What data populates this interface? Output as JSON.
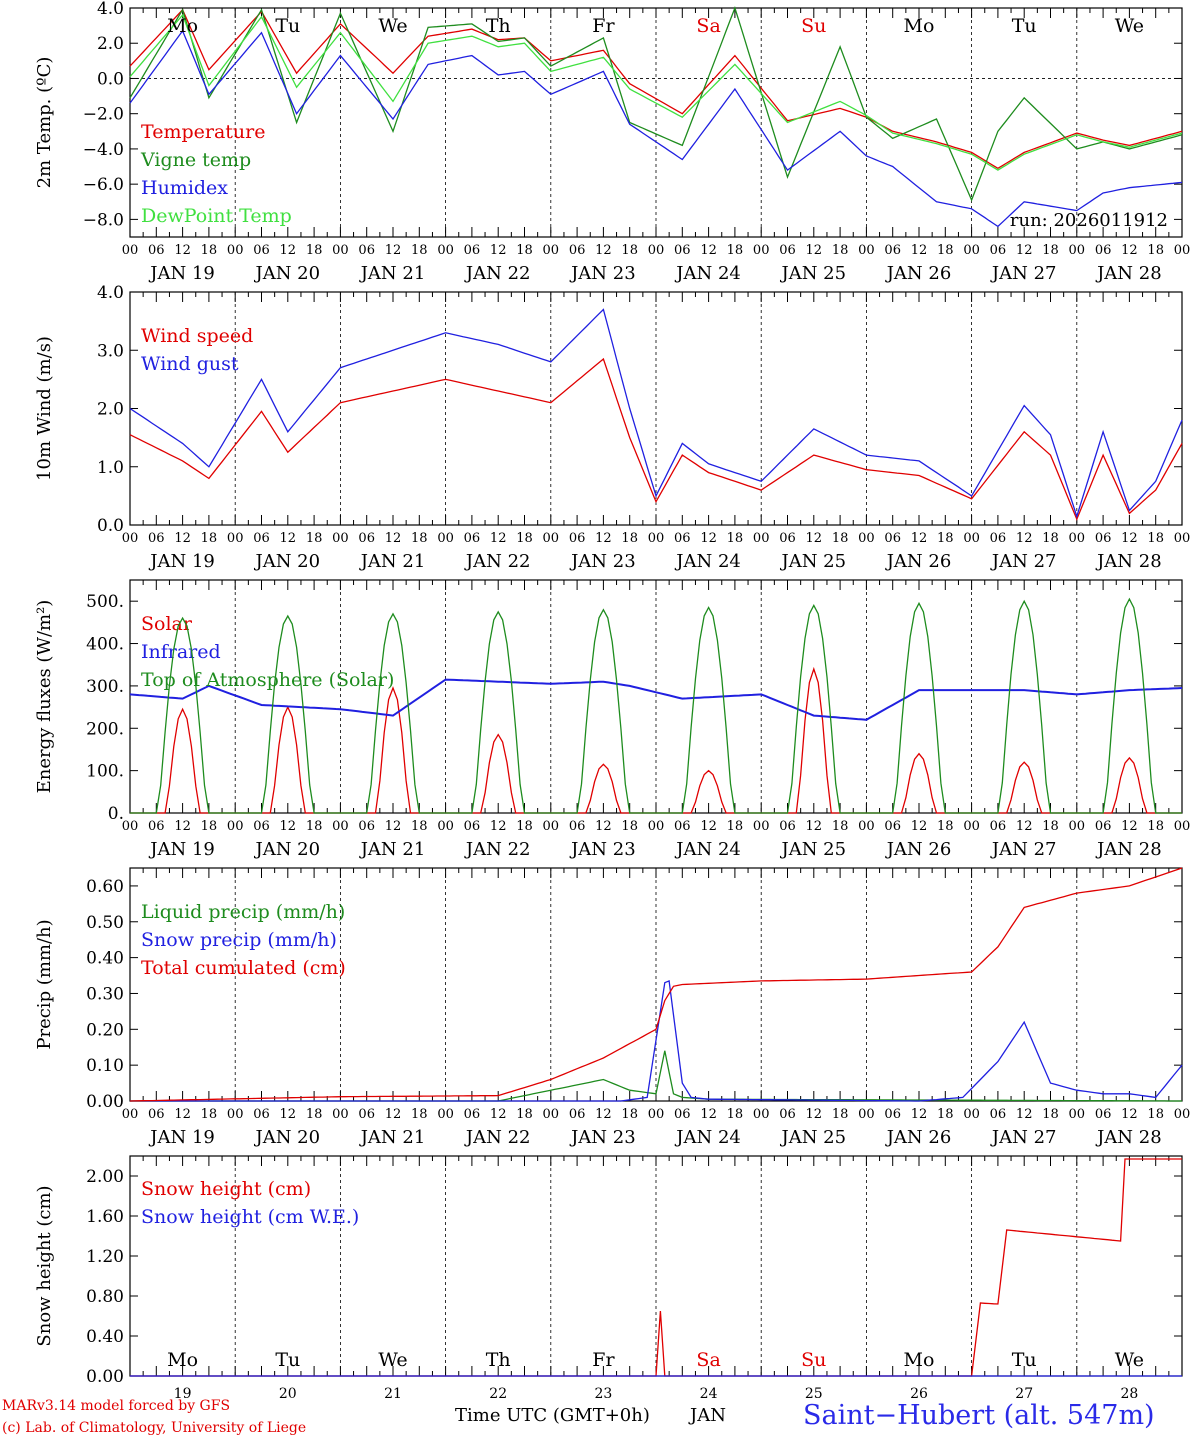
{
  "station": "Saint−Hubert (alt. 547m)",
  "model_credit": [
    "MARv3.14 model forced by GFS",
    "(c) Lab. of Climatology, University of Liege"
  ],
  "time_axis_label": "Time UTC (GMT+0h)",
  "month_label": "JAN",
  "run_label": "run: 2026011912",
  "day_numbers": [
    "19",
    "20",
    "21",
    "22",
    "23",
    "24",
    "25",
    "26",
    "27",
    "28"
  ],
  "day_names": [
    "Mo",
    "Tu",
    "We",
    "Th",
    "Fr",
    "Sa",
    "Su",
    "Mo",
    "Tu",
    "We"
  ],
  "day_name_colors": [
    "#000000",
    "#000000",
    "#000000",
    "#000000",
    "#000000",
    "#e00000",
    "#e00000",
    "#000000",
    "#000000",
    "#000000"
  ],
  "date_labels": [
    "JAN 19",
    "JAN 20",
    "JAN 21",
    "JAN 22",
    "JAN 23",
    "JAN 24",
    "JAN 25",
    "JAN 26",
    "JAN 27",
    "JAN 28"
  ],
  "hour_ticks": [
    "00",
    "06",
    "12",
    "18"
  ],
  "colors": {
    "red": "#e00000",
    "green": "#1e8c1e",
    "blue": "#2020e0",
    "lightgreen": "#40e040"
  },
  "chart_data": [
    {
      "type": "line",
      "ylabel": "2m Temp. (ºC)",
      "ylim": [
        -9,
        4
      ],
      "yticks": [
        "4.0",
        "2.0",
        "0.0",
        "−2.0",
        "−4.0",
        "−6.0",
        "−8.0"
      ],
      "ytick_values": [
        4,
        2,
        0,
        -2,
        -4,
        -6,
        -8
      ],
      "zero_line": true,
      "x_hours": [
        0,
        12,
        18,
        30,
        38,
        48,
        60,
        68,
        78,
        84,
        90,
        96,
        108,
        114,
        126,
        138,
        150,
        162,
        168,
        174,
        184,
        192,
        198,
        204,
        216,
        222,
        228,
        240
      ],
      "series": [
        {
          "name": "Temperature",
          "color": "red",
          "values": [
            0.7,
            3.9,
            0.5,
            3.8,
            0.3,
            3.1,
            0.3,
            2.4,
            2.8,
            2.2,
            2.3,
            1.0,
            1.6,
            -0.3,
            -2.0,
            1.3,
            -2.4,
            -1.7,
            -2.2,
            -3.0,
            -3.6,
            -4.2,
            -5.1,
            -4.2,
            -3.1,
            -3.5,
            -3.8,
            -3.0
          ]
        },
        {
          "name": "Vigne temp",
          "color": "green",
          "values": [
            -1.1,
            3.9,
            -1.1,
            3.9,
            -2.5,
            3.7,
            -3.0,
            2.9,
            3.1,
            2.1,
            2.3,
            0.7,
            2.3,
            -2.5,
            -3.8,
            4.0,
            -5.6,
            1.8,
            -2.2,
            -3.4,
            -2.3,
            -6.9,
            -3.0,
            -1.1,
            -4.0,
            -3.6,
            -4.0,
            -3.2
          ]
        },
        {
          "name": "Humidex",
          "color": "blue",
          "values": [
            -1.4,
            2.7,
            -0.9,
            2.6,
            -2.0,
            1.3,
            -2.3,
            0.8,
            1.3,
            0.2,
            0.4,
            -0.9,
            0.4,
            -2.6,
            -4.6,
            -0.6,
            -5.2,
            -3.0,
            -4.4,
            -5.0,
            -7.0,
            -7.4,
            -8.4,
            -7.0,
            -7.5,
            -6.5,
            -6.2,
            -5.9
          ]
        },
        {
          "name": "DewPoint Temp",
          "color": "lightgreen",
          "values": [
            0.1,
            3.6,
            -0.4,
            3.5,
            -0.5,
            2.6,
            -1.3,
            2.0,
            2.4,
            1.8,
            2.0,
            0.4,
            1.2,
            -0.6,
            -2.2,
            0.8,
            -2.5,
            -1.3,
            -2.1,
            -3.1,
            -3.7,
            -4.3,
            -5.2,
            -4.3,
            -3.2,
            -3.6,
            -3.9,
            -3.1
          ]
        }
      ],
      "legend_position": "left"
    },
    {
      "type": "line",
      "ylabel": "10m Wind (m/s)",
      "ylim": [
        0,
        4
      ],
      "yticks": [
        "4.0",
        "3.0",
        "2.0",
        "1.0",
        "0.0"
      ],
      "ytick_values": [
        4,
        3,
        2,
        1,
        0
      ],
      "x_hours": [
        0,
        12,
        18,
        30,
        36,
        48,
        60,
        72,
        84,
        96,
        108,
        114,
        120,
        126,
        132,
        144,
        156,
        168,
        180,
        192,
        204,
        210,
        216,
        222,
        228,
        234,
        240
      ],
      "series": [
        {
          "name": "Wind speed",
          "color": "red",
          "values": [
            1.55,
            1.1,
            0.8,
            1.95,
            1.25,
            2.1,
            2.3,
            2.5,
            2.3,
            2.1,
            2.85,
            1.5,
            0.4,
            1.2,
            0.9,
            0.6,
            1.2,
            0.95,
            0.85,
            0.45,
            1.6,
            1.2,
            0.1,
            1.2,
            0.2,
            0.6,
            1.4
          ]
        },
        {
          "name": "Wind gust",
          "color": "blue",
          "values": [
            2.0,
            1.4,
            1.0,
            2.5,
            1.6,
            2.7,
            3.0,
            3.3,
            3.1,
            2.8,
            3.7,
            2.0,
            0.5,
            1.4,
            1.05,
            0.75,
            1.65,
            1.2,
            1.1,
            0.5,
            2.05,
            1.55,
            0.15,
            1.6,
            0.25,
            0.75,
            1.8
          ]
        }
      ],
      "legend_position": "left"
    },
    {
      "type": "line",
      "ylabel": "Energy fluxes (W/m²)",
      "ylim": [
        0,
        550
      ],
      "yticks": [
        "500.",
        "400.",
        "300.",
        "200.",
        "100.",
        "0."
      ],
      "ytick_values": [
        500,
        400,
        300,
        200,
        100,
        0
      ],
      "series": [
        {
          "name": "Solar",
          "color": "red",
          "day_peaks": [
            245,
            250,
            295,
            185,
            115,
            100,
            340,
            140,
            120,
            130
          ]
        },
        {
          "name": "Infrared",
          "color": "blue",
          "x_hours": [
            0,
            12,
            18,
            30,
            48,
            60,
            72,
            84,
            96,
            108,
            114,
            120,
            126,
            144,
            156,
            168,
            180,
            192,
            204,
            216,
            228,
            240
          ],
          "values": [
            280,
            270,
            300,
            255,
            245,
            230,
            315,
            310,
            305,
            310,
            300,
            285,
            270,
            280,
            230,
            220,
            290,
            290,
            290,
            280,
            290,
            295
          ]
        },
        {
          "name": "Top of Atmosphere (Solar)",
          "color": "green",
          "day_peaks": [
            460,
            465,
            470,
            475,
            480,
            485,
            490,
            495,
            500,
            505
          ]
        }
      ],
      "legend_position": "left"
    },
    {
      "type": "line",
      "ylabel": "Precip (mm/h)",
      "ylim": [
        0,
        0.65
      ],
      "yticks": [
        "0.60",
        "0.50",
        "0.40",
        "0.30",
        "0.20",
        "0.10",
        "0.00"
      ],
      "ytick_values": [
        0.6,
        0.5,
        0.4,
        0.3,
        0.2,
        0.1,
        0
      ],
      "series": [
        {
          "name": "Liquid precip (mm/h)",
          "color": "green",
          "x_hours": [
            0,
            84,
            96,
            108,
            114,
            120,
            122,
            124,
            126,
            132,
            240
          ],
          "values": [
            0,
            0,
            0.03,
            0.06,
            0.03,
            0.02,
            0.14,
            0.02,
            0.01,
            0.005,
            0
          ]
        },
        {
          "name": "Snow precip (mm/h)",
          "color": "blue",
          "x_hours": [
            0,
            112,
            118,
            122,
            123,
            126,
            128,
            132,
            180,
            190,
            198,
            204,
            210,
            216,
            222,
            228,
            234,
            240
          ],
          "values": [
            0,
            0,
            0.01,
            0.33,
            0.335,
            0.05,
            0.01,
            0.005,
            0,
            0.01,
            0.11,
            0.22,
            0.05,
            0.03,
            0.02,
            0.02,
            0.01,
            0.1
          ]
        },
        {
          "name": "Total cumulated (cm)",
          "color": "red",
          "x_hours": [
            0,
            48,
            84,
            96,
            108,
            120,
            122,
            124,
            126,
            144,
            168,
            192,
            198,
            204,
            216,
            228,
            240
          ],
          "values": [
            0,
            0.012,
            0.015,
            0.06,
            0.12,
            0.2,
            0.28,
            0.32,
            0.325,
            0.335,
            0.34,
            0.36,
            0.43,
            0.54,
            0.58,
            0.6,
            0.65
          ]
        }
      ],
      "legend_position": "left"
    },
    {
      "type": "line",
      "ylabel": "Snow height (cm)",
      "ylim": [
        0,
        2.2
      ],
      "yticks": [
        "2.00",
        "1.60",
        "1.20",
        "0.80",
        "0.40",
        "0.00"
      ],
      "ytick_values": [
        2.0,
        1.6,
        1.2,
        0.8,
        0.4,
        0
      ],
      "series": [
        {
          "name": "Snow height (cm)",
          "color": "red",
          "x_hours": [
            0,
            120,
            121,
            122,
            192,
            194,
            198,
            200,
            226,
            227,
            238,
            240
          ],
          "values": [
            0,
            0,
            0.65,
            0,
            0,
            0.73,
            0.72,
            1.46,
            1.35,
            2.17,
            2.17,
            2.17
          ]
        },
        {
          "name": "Snow height (cm W.E.)",
          "color": "blue",
          "x_hours": [
            0,
            240
          ],
          "values": [
            0,
            0
          ]
        }
      ],
      "legend_position": "left"
    }
  ]
}
